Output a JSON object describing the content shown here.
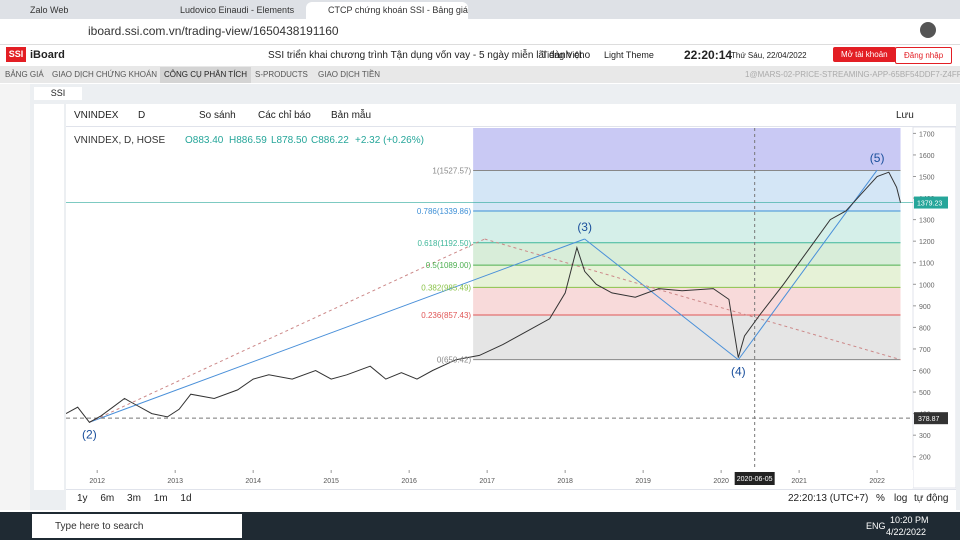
{
  "browser": {
    "tabs": [
      "Zalo Web",
      "Ludovico Einaudi - Elements",
      "CTCP chứng khoán SSI - Bảng giá"
    ],
    "url": "iboard.ssi.com.vn/trading-view/1650438191160"
  },
  "header": {
    "logo": "SSI",
    "app": "iBoard",
    "promo": "SSI triển khai chương trình Tận dụng vốn vay - 5 ngày miễn lãi dành cho",
    "language": "Tiếng Việt",
    "theme": "Light Theme",
    "time": "22:20:14",
    "date": "Thứ Sáu, 22/04/2022",
    "open_account": "Mở tài khoản",
    "login": "Đăng nhập"
  },
  "nav": {
    "items": [
      "BẢNG GIÁ",
      "GIAO DỊCH CHỨNG KHOÁN",
      "CÔNG CỤ PHÂN TÍCH",
      "S-PRODUCTS",
      "GIAO DỊCH TIỀN"
    ],
    "build": "1@MARS-02-PRICE-STREAMING-APP-65BF54DDF7-Z4FRP"
  },
  "chart_tab": "SSI",
  "toolbar": {
    "symbol": "VNINDEX",
    "interval": "D",
    "compare": "So sánh",
    "indicators": "Các chỉ báo",
    "templates": "Bản mẫu",
    "save": "Lưu"
  },
  "legend": {
    "title": "VNINDEX, D, HOSE",
    "ohlc": [
      "O883.40",
      "H886.59",
      "L878.50",
      "C886.22",
      "+2.32 (+0.26%)"
    ]
  },
  "chart_data": {
    "type": "line",
    "color": "#333333",
    "x": [
      2011.6,
      2011.75,
      2011.9,
      2012.05,
      2012.2,
      2012.35,
      2012.5,
      2012.7,
      2012.9,
      2013.05,
      2013.2,
      2013.5,
      2013.8,
      2014.0,
      2014.2,
      2014.5,
      2014.8,
      2015.0,
      2015.2,
      2015.5,
      2015.7,
      2015.9,
      2016.1,
      2016.3,
      2016.6,
      2016.9,
      2017.2,
      2017.5,
      2017.8,
      2018.0,
      2018.15,
      2018.25,
      2018.4,
      2018.6,
      2018.9,
      2019.2,
      2019.5,
      2019.9,
      2020.1,
      2020.22,
      2020.3,
      2020.5,
      2020.8,
      2021.0,
      2021.2,
      2021.4,
      2021.6,
      2021.8,
      2022.0,
      2022.15,
      2022.25,
      2022.3
    ],
    "values": [
      400,
      430,
      360,
      390,
      430,
      470,
      440,
      400,
      385,
      420,
      490,
      470,
      510,
      560,
      580,
      560,
      600,
      560,
      580,
      620,
      560,
      590,
      560,
      600,
      650,
      670,
      720,
      780,
      840,
      960,
      1170,
      1060,
      1000,
      960,
      940,
      980,
      970,
      980,
      930,
      660,
      760,
      860,
      1000,
      1100,
      1200,
      1300,
      1340,
      1420,
      1500,
      1520,
      1450,
      1379
    ],
    "xlim": [
      2011.6,
      2022.46
    ],
    "ylim": [
      55,
      1725
    ],
    "xticks": [
      2012,
      2013,
      2014,
      2015,
      2016,
      2017,
      2018,
      2019,
      2020,
      2021,
      2022
    ],
    "yticks": [
      200,
      300,
      400,
      500,
      600,
      700,
      800,
      900,
      1000,
      1100,
      1200,
      1300,
      1400,
      1500,
      1600,
      1700
    ],
    "last_price": 1379.23,
    "marker_price": 378.87,
    "crosshair_date": "2020-06-05",
    "fib_start": 2016.82,
    "fib_end": 2022.3,
    "fib_top_color": "#8888e6",
    "fib_levels": [
      {
        "label": "1(1527.57)",
        "value": 1527.57,
        "color": "#888888"
      },
      {
        "label": "0.786(1339.86)",
        "value": 1339.86,
        "color": "#3d8fd6"
      },
      {
        "label": "0.618(1192.50)",
        "value": 1192.5,
        "color": "#3fb79a"
      },
      {
        "label": "0.5(1089.00)",
        "value": 1089,
        "color": "#4caf50"
      },
      {
        "label": "0.382(985.49)",
        "value": 985.49,
        "color": "#8bc34a"
      },
      {
        "label": "0.236(857.43)",
        "value": 857.43,
        "color": "#e05555"
      },
      {
        "label": "0(650.42)",
        "value": 650.42,
        "color": "#888888"
      }
    ],
    "waves": [
      {
        "label": "(2)",
        "x": 2011.9,
        "value": 360
      },
      {
        "label": "(3)",
        "x": 2018.25,
        "value": 1210
      },
      {
        "label": "(4)",
        "x": 2020.22,
        "value": 650
      },
      {
        "label": "(5)",
        "x": 2022.0,
        "value": 1530
      }
    ]
  },
  "bottom": {
    "ranges": [
      "1y",
      "6m",
      "3m",
      "1m",
      "1d"
    ],
    "clock": "22:20:13 (UTC+7)",
    "options": [
      "%",
      "log",
      "tự động"
    ]
  },
  "taskbar": {
    "search": "Type here to search",
    "lang": "ENG",
    "time": "10:20 PM",
    "date": "4/22/2022"
  }
}
